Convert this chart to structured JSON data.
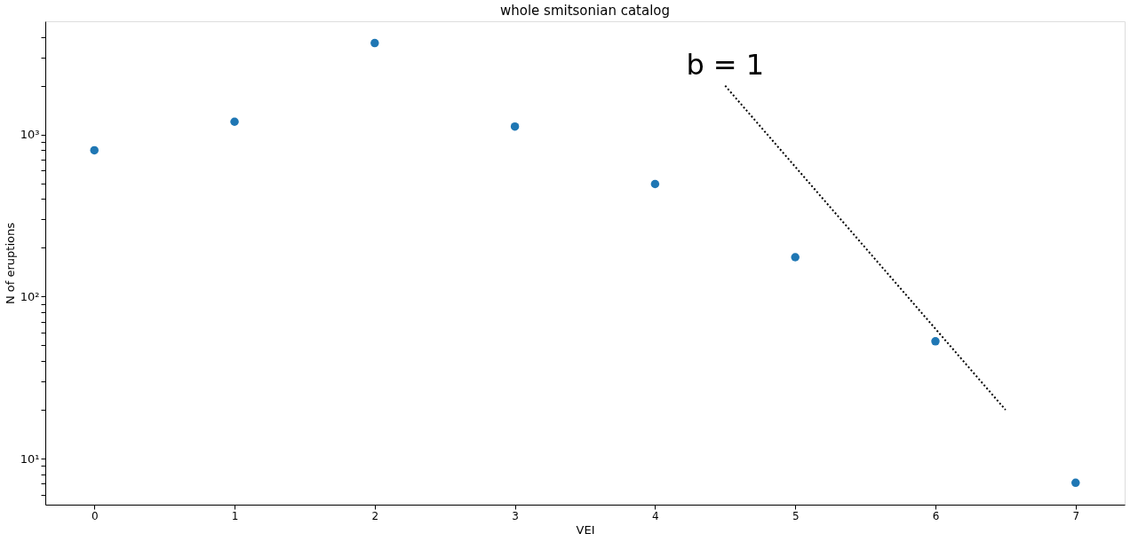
{
  "chart_data": {
    "type": "scatter",
    "title": "whole smitsonian catalog",
    "xlabel": "VEI",
    "ylabel": "N of eruptions",
    "x": [
      0,
      1,
      2,
      3,
      4,
      5,
      6,
      7
    ],
    "series": [
      {
        "color": "#1f77b4",
        "values": [
          800,
          1200,
          3670,
          1120,
          495,
          175,
          53,
          7.1
        ],
        "marker": "circle"
      },
      {
        "type": "line",
        "color": "#000000",
        "line_style": "dotted",
        "marker": "none",
        "x": [
          4.5,
          6.5
        ],
        "values": [
          2000,
          20
        ]
      }
    ],
    "log": "y",
    "xlim": [
      -0.35,
      7.35
    ],
    "xticks": [
      0,
      1,
      2,
      3,
      4,
      5,
      6,
      7
    ],
    "ylim": [
      5.2,
      5000
    ],
    "yticks": [
      {
        "value": 10,
        "label": "10¹"
      },
      {
        "value": 100,
        "label": "10²"
      },
      {
        "value": 1000,
        "label": "10³"
      },
      {
        "value": 6,
        "label": null
      },
      {
        "value": 7,
        "label": null
      },
      {
        "value": 8,
        "label": null
      },
      {
        "value": 9,
        "label": null
      },
      {
        "value": 20,
        "label": null
      },
      {
        "value": 30,
        "label": null
      },
      {
        "value": 40,
        "label": null
      },
      {
        "value": 50,
        "label": null
      },
      {
        "value": 60,
        "label": null
      },
      {
        "value": 70,
        "label": null
      },
      {
        "value": 80,
        "label": null
      },
      {
        "value": 90,
        "label": null
      },
      {
        "value": 200,
        "label": null
      },
      {
        "value": 300,
        "label": null
      },
      {
        "value": 400,
        "label": null
      },
      {
        "value": 500,
        "label": null
      },
      {
        "value": 600,
        "label": null
      },
      {
        "value": 700,
        "label": null
      },
      {
        "value": 800,
        "label": null
      },
      {
        "value": 900,
        "label": null
      },
      {
        "value": 2000,
        "label": null
      },
      {
        "value": 3000,
        "label": null
      },
      {
        "value": 4000,
        "label": null
      }
    ],
    "annotations": [
      "b = 1"
    ],
    "grid": false
  }
}
